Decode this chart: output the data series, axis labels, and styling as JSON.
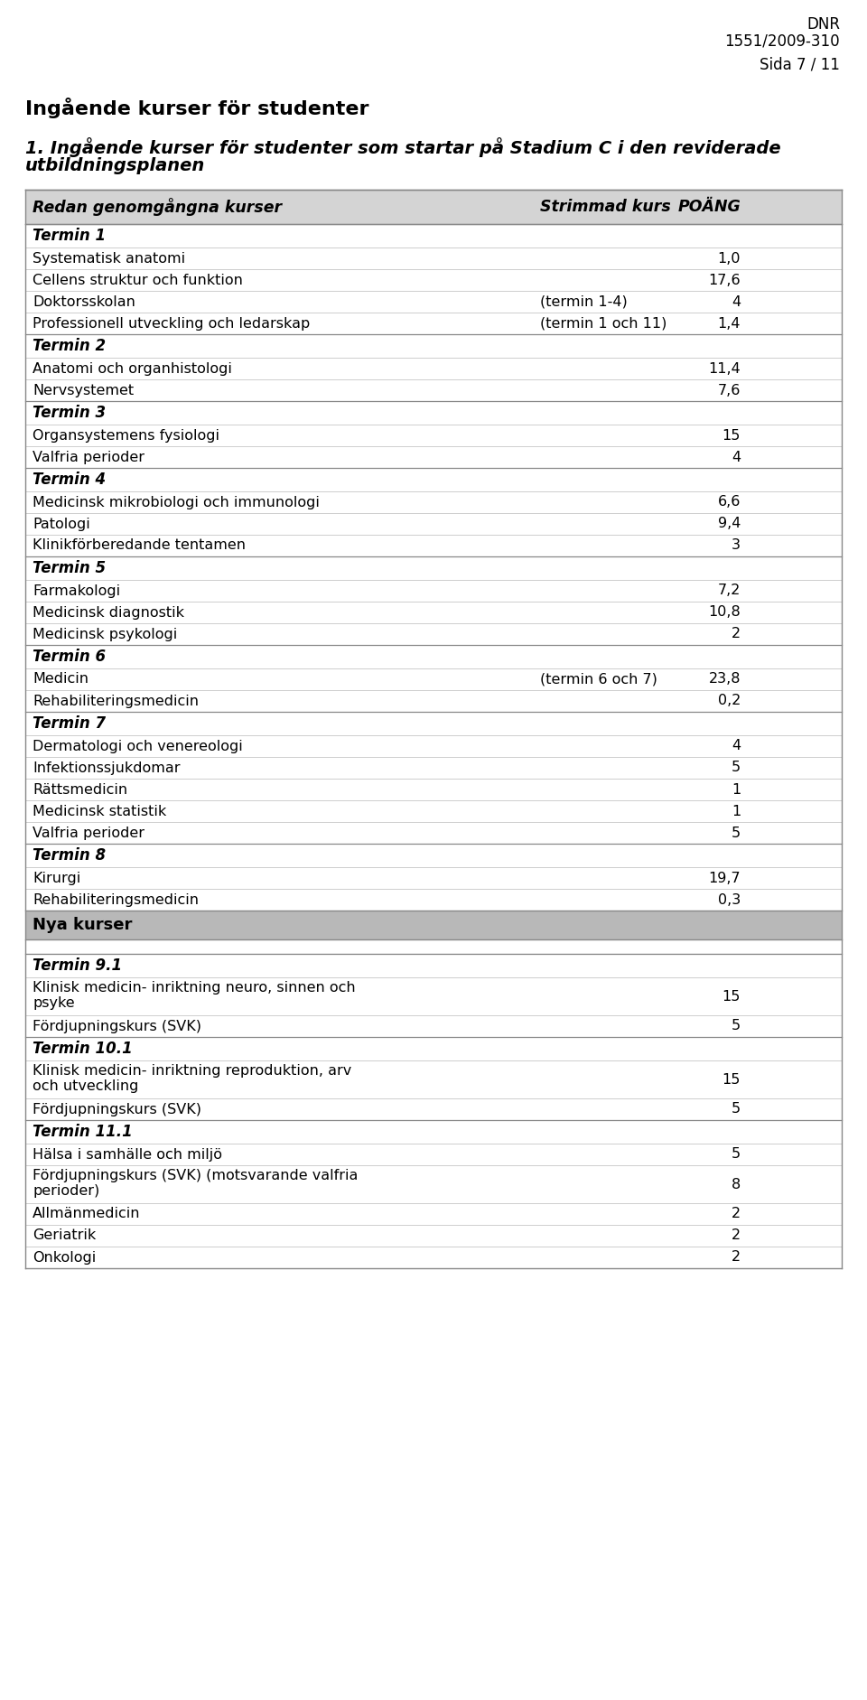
{
  "header_right_line1": "DNR",
  "header_right_line2": "1551/2009-310",
  "header_right_line3": "Sida 7 / 11",
  "page_title": "Ingående kurser för studenter",
  "section_title_line1": "1. Ingående kurser för studenter som startar på Stadium C i den reviderade",
  "section_title_line2": "utbildningsplanen",
  "table_header": [
    "Redan genomgångna kurser",
    "Strimmad kurs",
    "POÄNG"
  ],
  "rows": [
    {
      "type": "term_header",
      "text": "Termin 1",
      "strimmad": "",
      "poang": ""
    },
    {
      "type": "data",
      "course": "Systematisk anatomi",
      "strimmad": "",
      "poang": "1,0"
    },
    {
      "type": "data",
      "course": "Cellens struktur och funktion",
      "strimmad": "",
      "poang": "17,6"
    },
    {
      "type": "data",
      "course": "Doktorsskolan",
      "strimmad": "(termin 1-4)",
      "poang": "4"
    },
    {
      "type": "data",
      "course": "Professionell utveckling och ledarskap",
      "strimmad": "(termin 1 och 11)",
      "poang": "1,4"
    },
    {
      "type": "term_header",
      "text": "Termin 2",
      "strimmad": "",
      "poang": ""
    },
    {
      "type": "data",
      "course": "Anatomi och organhistologi",
      "strimmad": "",
      "poang": "11,4"
    },
    {
      "type": "data",
      "course": "Nervsystemet",
      "strimmad": "",
      "poang": "7,6"
    },
    {
      "type": "term_header",
      "text": "Termin 3",
      "strimmad": "",
      "poang": ""
    },
    {
      "type": "data",
      "course": "Organsystemens fysiologi",
      "strimmad": "",
      "poang": "15"
    },
    {
      "type": "data",
      "course": "Valfria perioder",
      "strimmad": "",
      "poang": "4"
    },
    {
      "type": "term_header",
      "text": "Termin 4",
      "strimmad": "",
      "poang": ""
    },
    {
      "type": "data",
      "course": "Medicinsk mikrobiologi och immunologi",
      "strimmad": "",
      "poang": "6,6"
    },
    {
      "type": "data",
      "course": "Patologi",
      "strimmad": "",
      "poang": "9,4"
    },
    {
      "type": "data",
      "course": "Klinikförberedande tentamen",
      "strimmad": "",
      "poang": "3"
    },
    {
      "type": "term_header",
      "text": "Termin 5",
      "strimmad": "",
      "poang": ""
    },
    {
      "type": "data",
      "course": "Farmakologi",
      "strimmad": "",
      "poang": "7,2"
    },
    {
      "type": "data",
      "course": "Medicinsk diagnostik",
      "strimmad": "",
      "poang": "10,8"
    },
    {
      "type": "data",
      "course": "Medicinsk psykologi",
      "strimmad": "",
      "poang": "2"
    },
    {
      "type": "term_header",
      "text": "Termin 6",
      "strimmad": "",
      "poang": ""
    },
    {
      "type": "data",
      "course": "Medicin",
      "strimmad": "(termin 6 och 7)",
      "poang": "23,8"
    },
    {
      "type": "data",
      "course": "Rehabiliteringsmedicin",
      "strimmad": "",
      "poang": "0,2"
    },
    {
      "type": "term_header",
      "text": "Termin 7",
      "strimmad": "",
      "poang": ""
    },
    {
      "type": "data",
      "course": "Dermatologi och venereologi",
      "strimmad": "",
      "poang": "4"
    },
    {
      "type": "data",
      "course": "Infektionssjukdomar",
      "strimmad": "",
      "poang": "5"
    },
    {
      "type": "data",
      "course": "Rättsmedicin",
      "strimmad": "",
      "poang": "1"
    },
    {
      "type": "data",
      "course": "Medicinsk statistik",
      "strimmad": "",
      "poang": "1"
    },
    {
      "type": "data",
      "course": "Valfria perioder",
      "strimmad": "",
      "poang": "5"
    },
    {
      "type": "term_header",
      "text": "Termin 8",
      "strimmad": "",
      "poang": ""
    },
    {
      "type": "data",
      "course": "Kirurgi",
      "strimmad": "",
      "poang": "19,7"
    },
    {
      "type": "data",
      "course": "Rehabiliteringsmedicin",
      "strimmad": "",
      "poang": "0,3"
    },
    {
      "type": "section_header",
      "text": "Nya kurser",
      "strimmad": "",
      "poang": ""
    },
    {
      "type": "spacer",
      "text": "",
      "strimmad": "",
      "poang": ""
    },
    {
      "type": "term_header",
      "text": "Termin 9.1",
      "strimmad": "",
      "poang": ""
    },
    {
      "type": "data2",
      "course": "Klinisk medicin- inriktning neuro, sinnen och",
      "course2": "psyke",
      "strimmad": "",
      "poang": "15"
    },
    {
      "type": "data",
      "course": "Fördjupningskurs (SVK)",
      "strimmad": "",
      "poang": "5"
    },
    {
      "type": "term_header",
      "text": "Termin 10.1",
      "strimmad": "",
      "poang": ""
    },
    {
      "type": "data2",
      "course": "Klinisk medicin- inriktning reproduktion, arv",
      "course2": "och utveckling",
      "strimmad": "",
      "poang": "15"
    },
    {
      "type": "data",
      "course": "Fördjupningskurs (SVK)",
      "strimmad": "",
      "poang": "5"
    },
    {
      "type": "term_header",
      "text": "Termin 11.1",
      "strimmad": "",
      "poang": ""
    },
    {
      "type": "data",
      "course": "Hälsa i samhälle och miljö",
      "strimmad": "",
      "poang": "5"
    },
    {
      "type": "data2",
      "course": "Fördjupningskurs (SVK) (motsvarande valfria",
      "course2": "perioder)",
      "strimmad": "",
      "poang": "8"
    },
    {
      "type": "data",
      "course": "Allmänmedicin",
      "strimmad": "",
      "poang": "2"
    },
    {
      "type": "data",
      "course": "Geriatrik",
      "strimmad": "",
      "poang": "2"
    },
    {
      "type": "data",
      "course": "Onkologi",
      "strimmad": "",
      "poang": "2"
    }
  ],
  "bg_white": "#ffffff",
  "bg_header": "#d4d4d4",
  "bg_section": "#b8b8b8",
  "bg_spacer": "#ffffff",
  "line_color": "#aaaaaa",
  "line_color_strong": "#888888",
  "text_color": "#000000"
}
